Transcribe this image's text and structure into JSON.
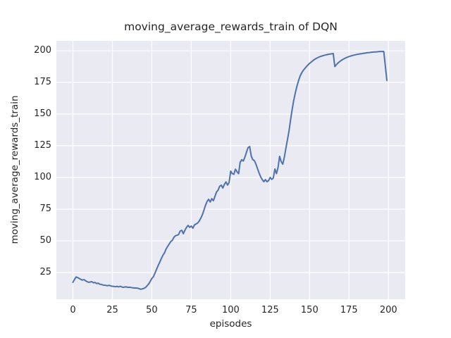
{
  "figure": {
    "title": "moving_average_rewards_train of DQN"
  },
  "chart_data": {
    "type": "line",
    "title": "moving_average_rewards_train of DQN",
    "xlabel": "episodes",
    "ylabel": "moving_average_rewards_train",
    "x_ticks": [
      0,
      25,
      50,
      75,
      100,
      125,
      150,
      175,
      200
    ],
    "y_ticks": [
      25,
      50,
      75,
      100,
      125,
      150,
      175,
      200
    ],
    "xlim": [
      -10.5,
      210.6
    ],
    "ylim": [
      3.9,
      207.8
    ],
    "grid": true,
    "legend_position": "none",
    "style": {
      "line_color": "#4C72B0",
      "plot_bg": "#EAEAF2",
      "grid_color": "#FFFFFF",
      "text_color": "#262626"
    },
    "series": [
      {
        "name": "moving_average_rewards_train",
        "x_start": 0,
        "x_step": 1,
        "values": [
          17.3,
          19.5,
          21.5,
          21.0,
          20.3,
          19.6,
          19.0,
          19.4,
          18.5,
          17.8,
          17.3,
          17.5,
          17.8,
          16.9,
          17.2,
          16.3,
          16.6,
          15.8,
          15.6,
          15.2,
          15.0,
          14.8,
          14.6,
          14.9,
          14.4,
          14.2,
          14.0,
          13.8,
          14.1,
          13.7,
          14.2,
          13.6,
          13.3,
          13.7,
          13.6,
          13.3,
          13.4,
          13.2,
          12.9,
          12.8,
          12.8,
          12.7,
          12.3,
          11.8,
          12.1,
          12.5,
          13.2,
          14.5,
          16.0,
          18.0,
          20.3,
          21.7,
          24.5,
          27.5,
          30.5,
          33.0,
          36.0,
          38.5,
          40.5,
          43.5,
          45.5,
          47.5,
          49.4,
          50.5,
          52.8,
          54.0,
          54.4,
          55.0,
          57.8,
          58.3,
          55.6,
          58.5,
          60.6,
          62.2,
          60.6,
          61.7,
          60.0,
          62.5,
          63.3,
          64.0,
          65.5,
          67.8,
          70.5,
          74.0,
          78.0,
          81.0,
          82.8,
          80.6,
          83.3,
          81.7,
          85.0,
          88.5,
          90.0,
          93.0,
          93.9,
          91.7,
          94.5,
          96.5,
          94.0,
          96.0,
          105.0,
          103.0,
          102.5,
          106.5,
          104.5,
          103.0,
          112.0,
          114.0,
          113.0,
          116.0,
          120.0,
          123.5,
          124.4,
          117.0,
          114.0,
          113.3,
          110.5,
          107.0,
          103.5,
          100.5,
          98.3,
          96.7,
          98.3,
          96.7,
          97.5,
          100.0,
          98.5,
          99.5,
          106.7,
          103.0,
          108.0,
          116.7,
          112.5,
          110.5,
          116.0,
          123.0,
          130.0,
          137.0,
          146.0,
          154.0,
          161.0,
          167.0,
          172.0,
          176.5,
          180.0,
          182.5,
          184.5,
          186.0,
          187.5,
          188.8,
          190.0,
          191.1,
          192.1,
          193.0,
          193.8,
          194.4,
          195.0,
          195.5,
          195.9,
          196.3,
          196.6,
          196.9,
          197.2,
          197.4,
          197.6,
          197.8,
          187.5,
          189.0,
          190.3,
          191.4,
          192.3,
          193.1,
          193.8,
          194.4,
          194.9,
          195.4,
          195.8,
          196.2,
          196.5,
          196.8,
          197.1,
          197.3,
          197.5,
          197.7,
          197.9,
          198.1,
          198.3,
          198.5,
          198.6,
          198.8,
          198.9,
          199.0,
          199.1,
          199.2,
          199.3,
          199.4,
          199.4,
          199.4,
          188.0,
          176.5
        ]
      }
    ]
  }
}
